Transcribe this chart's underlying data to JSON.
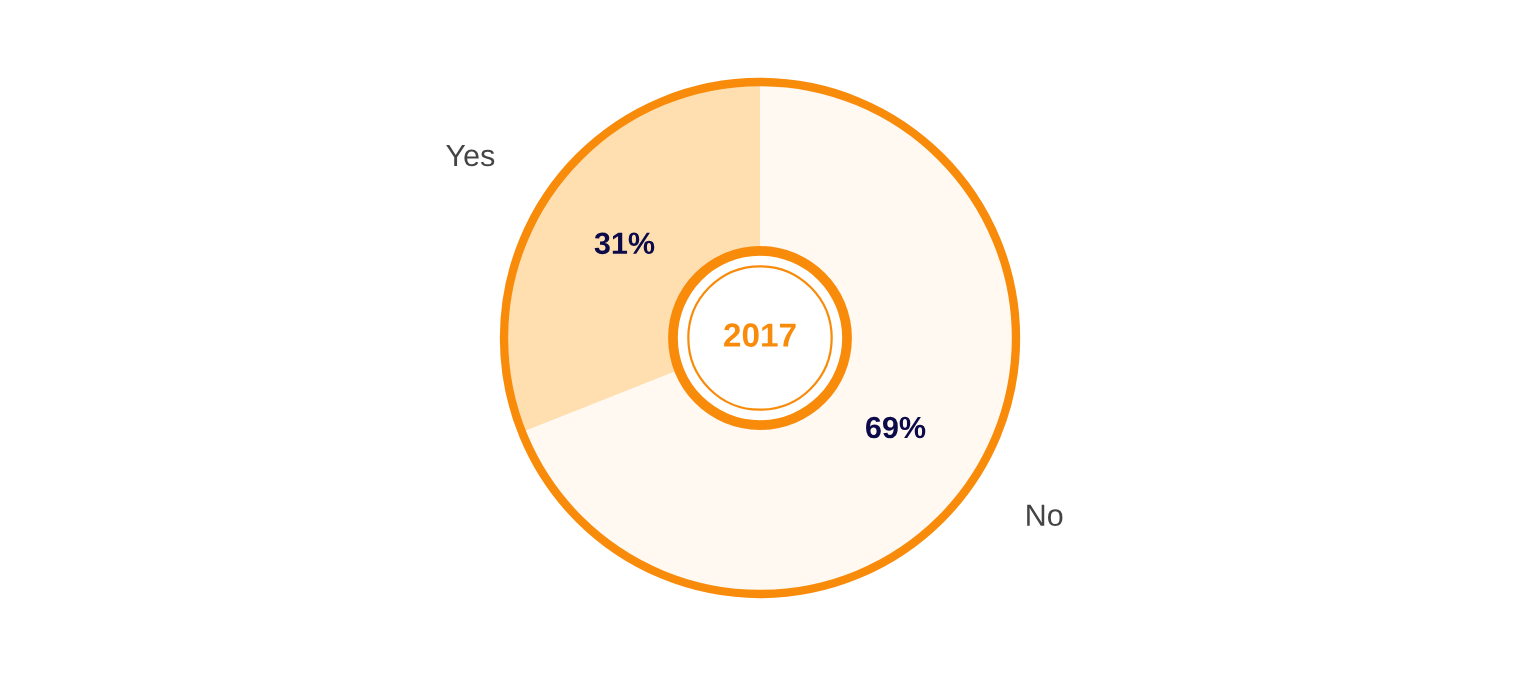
{
  "chart_data": {
    "type": "donut",
    "categories": [
      "Yes",
      "No"
    ],
    "values": [
      31,
      69
    ],
    "colors": [
      "#ffdfb0",
      "#fff9f2"
    ],
    "value_labels": [
      "31%",
      "69%"
    ],
    "annotations": [
      "2017"
    ],
    "legend": false
  }
}
